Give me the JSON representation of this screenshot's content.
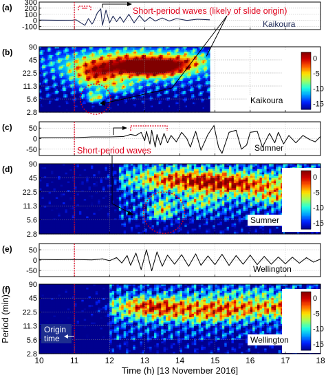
{
  "chart_data": {
    "type": "heatmap",
    "x": {
      "label": "Time (h) [13 November 2016]",
      "ticks": [
        10,
        11,
        12,
        13,
        14,
        15,
        16,
        17,
        18
      ],
      "range": [
        10,
        18
      ]
    },
    "origin_time": 11.0,
    "origin_label": [
      "Origin",
      "time"
    ],
    "y_label": "Period (min)",
    "colorbar": {
      "ticks": [
        0,
        -5,
        -10,
        -15
      ],
      "range": [
        -17,
        2
      ],
      "colormap": [
        "#00008f",
        "#0020ff",
        "#00a0ff",
        "#20ffdf",
        "#9fff60",
        "#ffe000",
        "#ff6000",
        "#d00000",
        "#800000"
      ]
    },
    "panels": [
      {
        "id": "a",
        "kind": "timeseries",
        "tag": "(a)",
        "station": "Kaikoura",
        "y_ticks": [
          300,
          200,
          100,
          0,
          -100
        ],
        "y_range": [
          -150,
          300
        ],
        "data_end": 14.85,
        "line_color": "#1f2a57",
        "annotation": "Short-period waves (likely of slide origin)",
        "annotation_color": "#e0001a",
        "series": [
          [
            10.0,
            5
          ],
          [
            10.5,
            3
          ],
          [
            10.95,
            4
          ],
          [
            11.05,
            10
          ],
          [
            11.2,
            -45
          ],
          [
            11.3,
            -80
          ],
          [
            11.4,
            30
          ],
          [
            11.5,
            -60
          ],
          [
            11.55,
            -20
          ],
          [
            11.65,
            120
          ],
          [
            11.75,
            190
          ],
          [
            11.8,
            -80
          ],
          [
            11.9,
            170
          ],
          [
            12.0,
            -40
          ],
          [
            12.1,
            70
          ],
          [
            12.2,
            -20
          ],
          [
            12.3,
            60
          ],
          [
            12.4,
            -30
          ],
          [
            12.55,
            100
          ],
          [
            12.7,
            -40
          ],
          [
            12.85,
            80
          ],
          [
            13.0,
            -20
          ],
          [
            13.15,
            50
          ],
          [
            13.3,
            -10
          ],
          [
            13.5,
            40
          ],
          [
            13.7,
            -10
          ],
          [
            13.9,
            30
          ],
          [
            14.2,
            0
          ],
          [
            14.5,
            20
          ],
          [
            14.85,
            10
          ]
        ]
      },
      {
        "id": "b",
        "kind": "spectrogram",
        "tag": "(b)",
        "station": "Kaikoura",
        "y_ticks": [
          "90",
          "45",
          "22.5",
          "11.3",
          "5.6",
          "2.8"
        ],
        "data_end": 14.85,
        "circle": {
          "x": 11.6,
          "period": 5.6
        }
      },
      {
        "id": "c",
        "kind": "timeseries",
        "tag": "(c)",
        "station": "Sumner",
        "y_ticks": [
          50,
          0,
          -50
        ],
        "y_range": [
          -80,
          80
        ],
        "line_color": "#111111",
        "annotation": "Short-period waves",
        "annotation_color": "#e0001a",
        "series": [
          [
            10.0,
            5
          ],
          [
            10.5,
            5
          ],
          [
            11.0,
            5
          ],
          [
            11.5,
            8
          ],
          [
            12.0,
            8
          ],
          [
            12.4,
            10
          ],
          [
            12.6,
            20
          ],
          [
            12.75,
            15
          ],
          [
            12.9,
            30
          ],
          [
            13.0,
            -10
          ],
          [
            13.05,
            35
          ],
          [
            13.15,
            -25
          ],
          [
            13.2,
            40
          ],
          [
            13.3,
            -40
          ],
          [
            13.35,
            20
          ],
          [
            13.45,
            -30
          ],
          [
            13.55,
            25
          ],
          [
            13.65,
            -20
          ],
          [
            13.75,
            15
          ],
          [
            13.9,
            -15
          ],
          [
            14.05,
            30
          ],
          [
            14.2,
            0
          ],
          [
            14.3,
            -40
          ],
          [
            14.45,
            35
          ],
          [
            14.6,
            -55
          ],
          [
            14.8,
            20
          ],
          [
            14.97,
            62
          ],
          [
            15.1,
            -40
          ],
          [
            15.2,
            -70
          ],
          [
            15.4,
            30
          ],
          [
            15.6,
            40
          ],
          [
            15.75,
            -50
          ],
          [
            15.9,
            -30
          ],
          [
            16.0,
            30
          ],
          [
            16.2,
            35
          ],
          [
            16.35,
            -40
          ],
          [
            16.55,
            25
          ],
          [
            16.7,
            -20
          ],
          [
            16.8,
            30
          ],
          [
            16.95,
            -25
          ],
          [
            17.1,
            15
          ],
          [
            17.3,
            -20
          ],
          [
            17.5,
            15
          ],
          [
            17.7,
            -5
          ],
          [
            17.85,
            -15
          ],
          [
            18.0,
            10
          ]
        ]
      },
      {
        "id": "d",
        "kind": "spectrogram",
        "tag": "(d)",
        "station": "Sumner",
        "y_ticks": [
          "90",
          "45",
          "22.5",
          "11.3",
          "5.6",
          "2.8"
        ],
        "circle": {
          "x": 13.55,
          "period": 8.0
        }
      },
      {
        "id": "e",
        "kind": "timeseries",
        "tag": "(e)",
        "station": "Wellington",
        "y_ticks": [
          50,
          0,
          -50
        ],
        "y_range": [
          -80,
          80
        ],
        "line_color": "#111111",
        "series": [
          [
            10.0,
            3
          ],
          [
            10.5,
            2
          ],
          [
            11.0,
            3
          ],
          [
            11.5,
            1
          ],
          [
            11.8,
            6
          ],
          [
            12.0,
            -3
          ],
          [
            12.2,
            12
          ],
          [
            12.35,
            -14
          ],
          [
            12.5,
            22
          ],
          [
            12.6,
            -25
          ],
          [
            12.75,
            34
          ],
          [
            12.9,
            -46
          ],
          [
            13.05,
            50
          ],
          [
            13.2,
            -52
          ],
          [
            13.35,
            40
          ],
          [
            13.5,
            -30
          ],
          [
            13.65,
            24
          ],
          [
            13.85,
            -20
          ],
          [
            14.05,
            26
          ],
          [
            14.25,
            -30
          ],
          [
            14.45,
            30
          ],
          [
            14.6,
            -25
          ],
          [
            14.8,
            20
          ],
          [
            15.0,
            -22
          ],
          [
            15.2,
            28
          ],
          [
            15.4,
            -26
          ],
          [
            15.6,
            22
          ],
          [
            15.8,
            -20
          ],
          [
            16.0,
            24
          ],
          [
            16.2,
            -22
          ],
          [
            16.4,
            18
          ],
          [
            16.6,
            -20
          ],
          [
            16.8,
            15
          ],
          [
            17.0,
            -18
          ],
          [
            17.2,
            14
          ],
          [
            17.4,
            -15
          ],
          [
            17.6,
            12
          ],
          [
            17.8,
            -10
          ],
          [
            18.0,
            5
          ]
        ]
      },
      {
        "id": "f",
        "kind": "spectrogram",
        "tag": "(f)",
        "station": "Wellington",
        "y_ticks": [
          "90",
          "45",
          "22.5",
          "11.3",
          "5.6",
          "2.8"
        ]
      }
    ]
  }
}
